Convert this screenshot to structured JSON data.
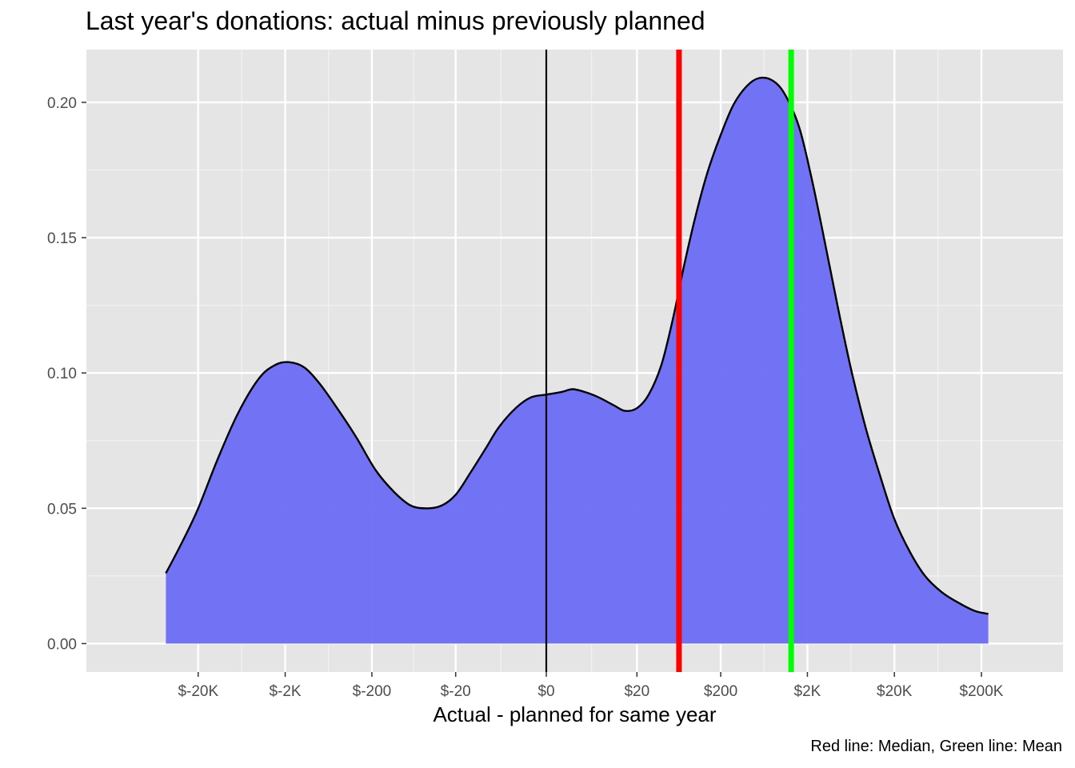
{
  "chart_data": {
    "type": "area",
    "title": "Last year's donations: actual minus previously planned",
    "xlabel": "Actual - planned for same year",
    "ylabel": "",
    "caption": "Red line: Median, Green line: Mean",
    "x_scale": "pseudo-log (signed, base 10)",
    "x_ticks": [
      {
        "value": -20000,
        "label": "$-20K"
      },
      {
        "value": -2000,
        "label": "$-2K"
      },
      {
        "value": -200,
        "label": "$-200"
      },
      {
        "value": -20,
        "label": "$-20"
      },
      {
        "value": 0,
        "label": "$0"
      },
      {
        "value": 20,
        "label": "$20"
      },
      {
        "value": 200,
        "label": "$200"
      },
      {
        "value": 2000,
        "label": "$2K"
      },
      {
        "value": 20000,
        "label": "$20K"
      },
      {
        "value": 200000,
        "label": "$200K"
      }
    ],
    "y_ticks": [
      {
        "value": 0.0,
        "label": "0.00"
      },
      {
        "value": 0.05,
        "label": "0.05"
      },
      {
        "value": 0.1,
        "label": "0.10"
      },
      {
        "value": 0.15,
        "label": "0.15"
      },
      {
        "value": 0.2,
        "label": "0.20"
      }
    ],
    "ylim": [
      -0.0105,
      0.2195
    ],
    "grid": true,
    "density": {
      "fill_color": "#6b6bf5",
      "line_color": "#000000",
      "x": [
        -47000,
        -30000,
        -20000,
        -12000,
        -7000,
        -4000,
        -2600,
        -1800,
        -1200,
        -800,
        -480,
        -300,
        -180,
        -110,
        -70,
        -45,
        -30,
        -20,
        -13,
        -8,
        -5,
        -2.5,
        -1,
        0,
        1,
        2,
        3.5,
        6,
        10,
        14,
        20,
        28,
        40,
        55,
        75,
        100,
        140,
        200,
        280,
        400,
        560,
        800,
        1100,
        1600,
        2200,
        3100,
        4500,
        6500,
        9500,
        14000,
        20000,
        30000,
        45000,
        70000,
        110000,
        170000,
        240000
      ],
      "y": [
        0.026,
        0.038,
        0.05,
        0.068,
        0.085,
        0.098,
        0.103,
        0.104,
        0.102,
        0.096,
        0.086,
        0.076,
        0.064,
        0.056,
        0.051,
        0.05,
        0.051,
        0.055,
        0.063,
        0.072,
        0.08,
        0.087,
        0.091,
        0.092,
        0.093,
        0.094,
        0.093,
        0.091,
        0.088,
        0.086,
        0.087,
        0.092,
        0.103,
        0.12,
        0.14,
        0.157,
        0.174,
        0.188,
        0.199,
        0.206,
        0.209,
        0.208,
        0.203,
        0.191,
        0.173,
        0.15,
        0.124,
        0.1,
        0.079,
        0.061,
        0.046,
        0.034,
        0.025,
        0.019,
        0.015,
        0.012,
        0.011
      ]
    },
    "zero_line": {
      "value": 0,
      "color": "#000000"
    },
    "median": {
      "value": 65,
      "color": "#ff0000",
      "label": "Median"
    },
    "mean": {
      "value": 1300,
      "color": "#00ff00",
      "label": "Mean"
    }
  }
}
